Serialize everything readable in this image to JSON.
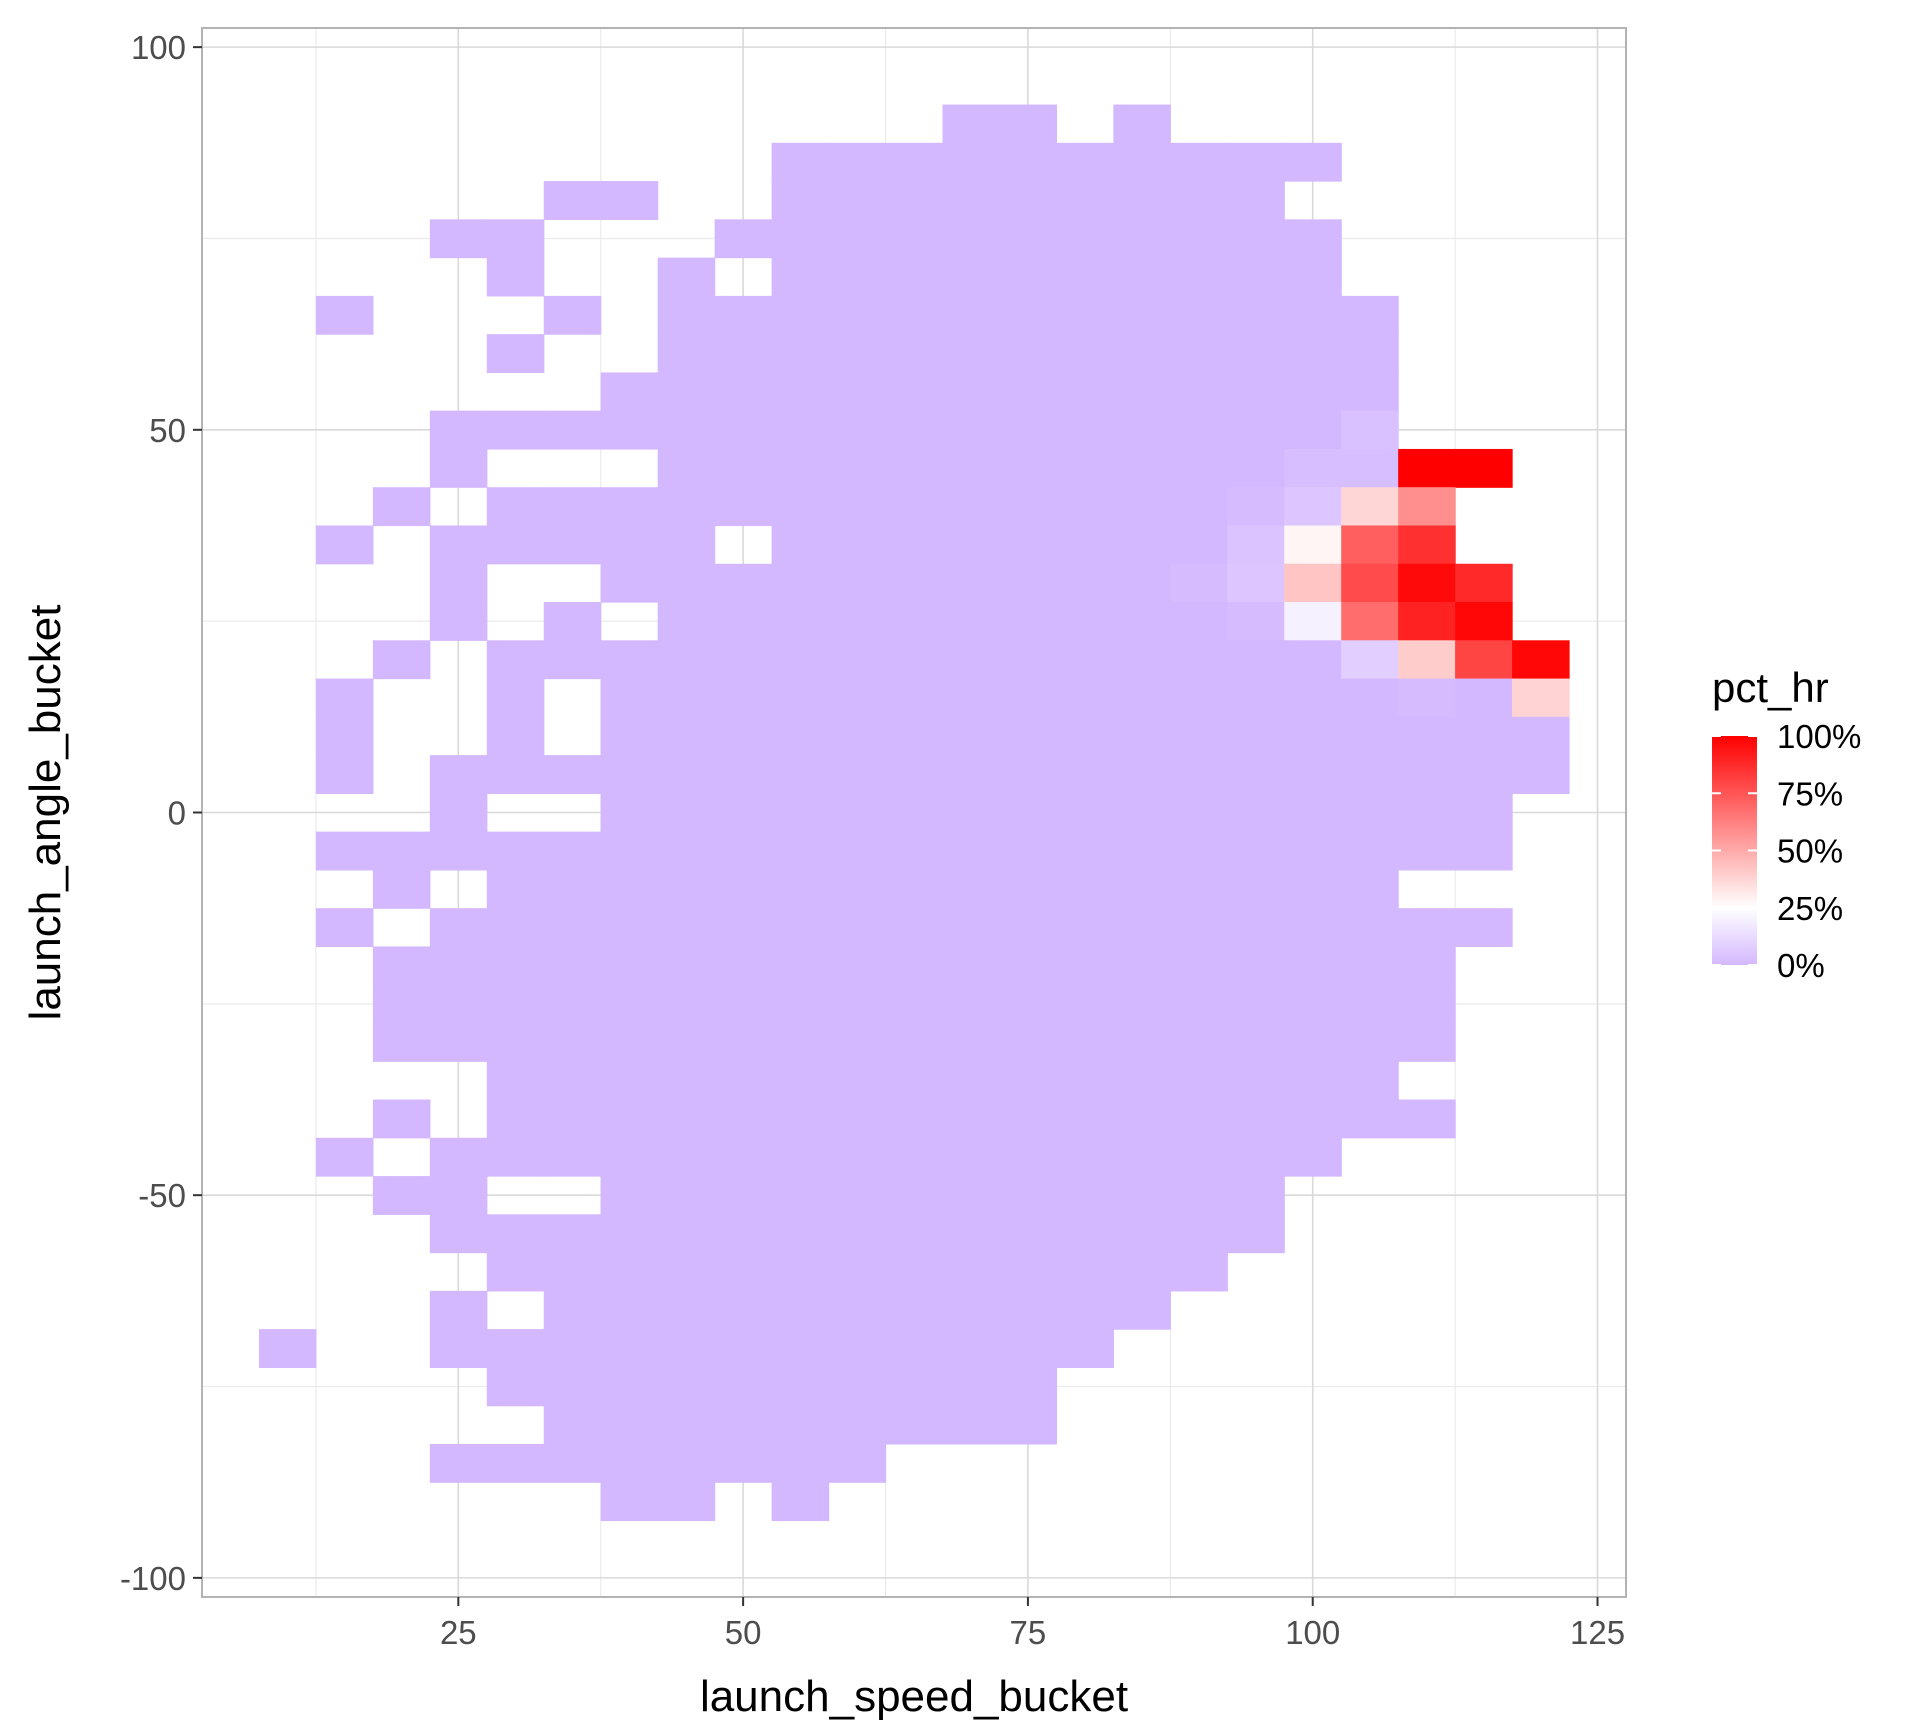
{
  "chart_data": {
    "type": "heatmap",
    "xlabel": "launch_speed_bucket",
    "ylabel": "launch_angle_bucket",
    "x_ticks": [
      "25",
      "50",
      "75",
      "100",
      "125"
    ],
    "y_ticks": [
      "100",
      "50",
      "0",
      "-50",
      "-100"
    ],
    "x_range": [
      2.5,
      127.5
    ],
    "y_range": [
      -102.5,
      102.5
    ],
    "bin_width": {
      "x": 5,
      "y": 5
    },
    "grid": true,
    "legend": {
      "title": "pct_hr",
      "labels": [
        "100%",
        "75%",
        "50%",
        "25%",
        "0%"
      ],
      "placement": "right",
      "scale_colors": [
        "#D4B8FF",
        "#FFFFFF",
        "#FF0000"
      ]
    },
    "background_fill_pct_hr": 0,
    "x_centers": [
      10,
      15,
      20,
      25,
      30,
      35,
      40,
      45,
      50,
      55,
      60,
      65,
      70,
      75,
      80,
      85,
      90,
      95,
      100,
      105,
      110,
      115,
      120
    ],
    "rows": [
      {
        "y": 90,
        "x": [
          70,
          75,
          85
        ]
      },
      {
        "y": 85,
        "x": [
          55,
          60,
          65,
          70,
          75,
          80,
          85,
          90,
          95,
          100
        ]
      },
      {
        "y": 80,
        "x": [
          35,
          40,
          55,
          60,
          65,
          70,
          75,
          80,
          85,
          90,
          95
        ]
      },
      {
        "y": 75,
        "x": [
          25,
          30,
          50,
          55,
          60,
          65,
          70,
          75,
          80,
          85,
          90,
          95,
          100
        ]
      },
      {
        "y": 70,
        "x": [
          30,
          45,
          55,
          60,
          65,
          70,
          75,
          80,
          85,
          90,
          95,
          100
        ]
      },
      {
        "y": 65,
        "x": [
          15,
          35,
          45,
          50,
          55,
          60,
          65,
          70,
          75,
          80,
          85,
          90,
          95,
          100,
          105
        ]
      },
      {
        "y": 60,
        "x": [
          30,
          45,
          50,
          55,
          60,
          65,
          70,
          75,
          80,
          85,
          90,
          95,
          100,
          105
        ]
      },
      {
        "y": 55,
        "x": [
          40,
          45,
          50,
          55,
          60,
          65,
          70,
          75,
          80,
          85,
          90,
          95,
          100,
          105
        ]
      },
      {
        "y": 50,
        "x": [
          25,
          30,
          35,
          40,
          45,
          50,
          55,
          60,
          65,
          70,
          75,
          80,
          85,
          90,
          95,
          100
        ],
        "cells": [
          [
            105,
            0.03
          ]
        ]
      },
      {
        "y": 45,
        "x": [
          25,
          45,
          50,
          55,
          60,
          65,
          70,
          75,
          80,
          85,
          90,
          95
        ],
        "cells": [
          [
            100,
            0.02
          ],
          [
            105,
            0.02
          ],
          [
            110,
            1.0
          ],
          [
            115,
            1.0
          ]
        ]
      },
      {
        "y": 40,
        "x": [
          20,
          30,
          35,
          40,
          45,
          50,
          55,
          60,
          65,
          70,
          75,
          80,
          85,
          90
        ],
        "cells": [
          [
            95,
            0.01
          ],
          [
            100,
            0.05
          ],
          [
            105,
            0.37
          ],
          [
            110,
            0.58
          ]
        ]
      },
      {
        "y": 35,
        "x": [
          15,
          25,
          30,
          35,
          40,
          45,
          55,
          60,
          65,
          70,
          75,
          80,
          85,
          90
        ],
        "cells": [
          [
            95,
            0.04
          ],
          [
            100,
            0.28
          ],
          [
            105,
            0.72
          ],
          [
            110,
            0.86
          ]
        ]
      },
      {
        "y": 30,
        "x": [
          25,
          40,
          45,
          50,
          55,
          60,
          65,
          70,
          75,
          80,
          85
        ],
        "cells": [
          [
            90,
            0.01
          ],
          [
            95,
            0.05
          ],
          [
            100,
            0.42
          ],
          [
            105,
            0.78
          ],
          [
            110,
            0.97
          ],
          [
            115,
            0.88
          ]
        ]
      },
      {
        "y": 25,
        "x": [
          25,
          35,
          45,
          50,
          55,
          60,
          65,
          70,
          75,
          80,
          85,
          90
        ],
        "cells": [
          [
            95,
            0.01
          ],
          [
            100,
            0.2
          ],
          [
            105,
            0.68
          ],
          [
            110,
            0.9
          ],
          [
            115,
            0.98
          ]
        ]
      },
      {
        "y": 20,
        "x": [
          20,
          30,
          35,
          40,
          45,
          50,
          55,
          60,
          65,
          70,
          75,
          80,
          85,
          90,
          95,
          100
        ],
        "cells": [
          [
            105,
            0.08
          ],
          [
            110,
            0.4
          ],
          [
            115,
            0.8
          ],
          [
            120,
            0.98
          ]
        ]
      },
      {
        "y": 15,
        "x": [
          15,
          30,
          40,
          45,
          50,
          55,
          60,
          65,
          70,
          75,
          80,
          85,
          90,
          95,
          100,
          105,
          115
        ],
        "cells": [
          [
            110,
            0.01
          ],
          [
            120,
            0.38
          ]
        ]
      },
      {
        "y": 10,
        "x": [
          15,
          30,
          40,
          45,
          50,
          55,
          60,
          65,
          70,
          75,
          80,
          85,
          90,
          95,
          100,
          105,
          110,
          115,
          120
        ]
      },
      {
        "y": 5,
        "x": [
          15,
          25,
          30,
          35,
          40,
          45,
          50,
          55,
          60,
          65,
          70,
          75,
          80,
          85,
          90,
          95,
          100,
          105,
          110,
          115,
          120
        ]
      },
      {
        "y": 0,
        "x": [
          25,
          40,
          45,
          50,
          55,
          60,
          65,
          70,
          75,
          80,
          85,
          90,
          95,
          100,
          105,
          110,
          115
        ]
      },
      {
        "y": -5,
        "x": [
          15,
          20,
          25,
          30,
          35,
          40,
          45,
          50,
          55,
          60,
          65,
          70,
          75,
          80,
          85,
          90,
          95,
          100,
          105,
          110,
          115
        ]
      },
      {
        "y": -10,
        "x": [
          20,
          30,
          35,
          40,
          45,
          50,
          55,
          60,
          65,
          70,
          75,
          80,
          85,
          90,
          95,
          100,
          105
        ]
      },
      {
        "y": -15,
        "x": [
          15,
          25,
          30,
          35,
          40,
          45,
          50,
          55,
          60,
          65,
          70,
          75,
          80,
          85,
          90,
          95,
          100,
          105,
          110,
          115
        ]
      },
      {
        "y": -20,
        "x": [
          20,
          25,
          30,
          35,
          40,
          45,
          50,
          55,
          60,
          65,
          70,
          75,
          80,
          85,
          90,
          95,
          100,
          105,
          110
        ]
      },
      {
        "y": -25,
        "x": [
          20,
          25,
          30,
          35,
          40,
          45,
          50,
          55,
          60,
          65,
          70,
          75,
          80,
          85,
          90,
          95,
          100,
          105,
          110
        ]
      },
      {
        "y": -30,
        "x": [
          20,
          25,
          30,
          35,
          40,
          45,
          50,
          55,
          60,
          65,
          70,
          75,
          80,
          85,
          90,
          95,
          100,
          105,
          110
        ]
      },
      {
        "y": -35,
        "x": [
          30,
          35,
          40,
          45,
          50,
          55,
          60,
          65,
          70,
          75,
          80,
          85,
          90,
          95,
          100,
          105
        ]
      },
      {
        "y": -40,
        "x": [
          20,
          30,
          35,
          40,
          45,
          50,
          55,
          60,
          65,
          70,
          75,
          80,
          85,
          90,
          95,
          100,
          105,
          110
        ]
      },
      {
        "y": -45,
        "x": [
          15,
          25,
          30,
          35,
          40,
          45,
          50,
          55,
          60,
          65,
          70,
          75,
          80,
          85,
          90,
          95,
          100
        ]
      },
      {
        "y": -50,
        "x": [
          20,
          25,
          40,
          45,
          50,
          55,
          60,
          65,
          70,
          75,
          80,
          85,
          90,
          95
        ]
      },
      {
        "y": -55,
        "x": [
          25,
          30,
          35,
          40,
          45,
          50,
          55,
          60,
          65,
          70,
          75,
          80,
          85,
          90,
          95
        ]
      },
      {
        "y": -60,
        "x": [
          30,
          35,
          40,
          45,
          50,
          55,
          60,
          65,
          70,
          75,
          80,
          85,
          90
        ]
      },
      {
        "y": -65,
        "x": [
          25,
          35,
          40,
          45,
          50,
          55,
          60,
          65,
          70,
          75,
          80,
          85
        ]
      },
      {
        "y": -70,
        "x": [
          10,
          25,
          30,
          35,
          40,
          45,
          50,
          55,
          60,
          65,
          70,
          75,
          80
        ]
      },
      {
        "y": -75,
        "x": [
          30,
          35,
          40,
          45,
          50,
          55,
          60,
          65,
          70,
          75
        ]
      },
      {
        "y": -80,
        "x": [
          35,
          40,
          45,
          50,
          55,
          60,
          65,
          70,
          75
        ]
      },
      {
        "y": -85,
        "x": [
          25,
          30,
          35,
          40,
          45,
          50,
          55,
          60
        ]
      },
      {
        "y": -90,
        "x": [
          40,
          45,
          55
        ]
      }
    ]
  }
}
